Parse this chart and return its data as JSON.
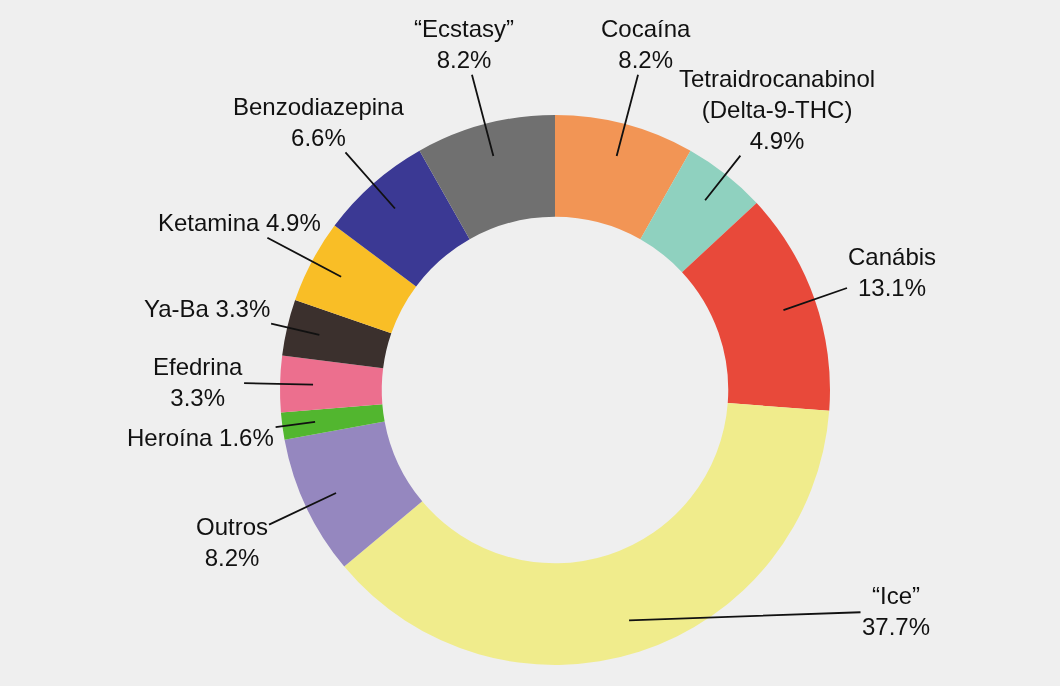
{
  "chart_data": {
    "type": "donut",
    "categories": [
      "Cocaína",
      "Tetraidrocanabinol (Delta-9-THC)",
      "Canábis",
      "“Ice”",
      "Outros",
      "Heroína",
      "Efedrina",
      "Ya-Ba",
      "Ketamina",
      "Benzodiazepina",
      "“Ecstasy”"
    ],
    "values": [
      8.2,
      4.9,
      13.1,
      37.7,
      8.2,
      1.6,
      3.3,
      3.3,
      4.9,
      6.6,
      8.2
    ],
    "value_labels": [
      "8.2%",
      "4.9%",
      "13.1%",
      "37.7%",
      "8.2%",
      "1.6%",
      "3.3%",
      "3.3%",
      "4.9%",
      "6.6%",
      "8.2%"
    ],
    "colors": [
      "#f29555",
      "#8fd1bf",
      "#e8493a",
      "#f0ec8c",
      "#9587bf",
      "#52b62f",
      "#ec6f8e",
      "#3b302d",
      "#f9be26",
      "#3b3994",
      "#707070"
    ],
    "legend": false
  }
}
